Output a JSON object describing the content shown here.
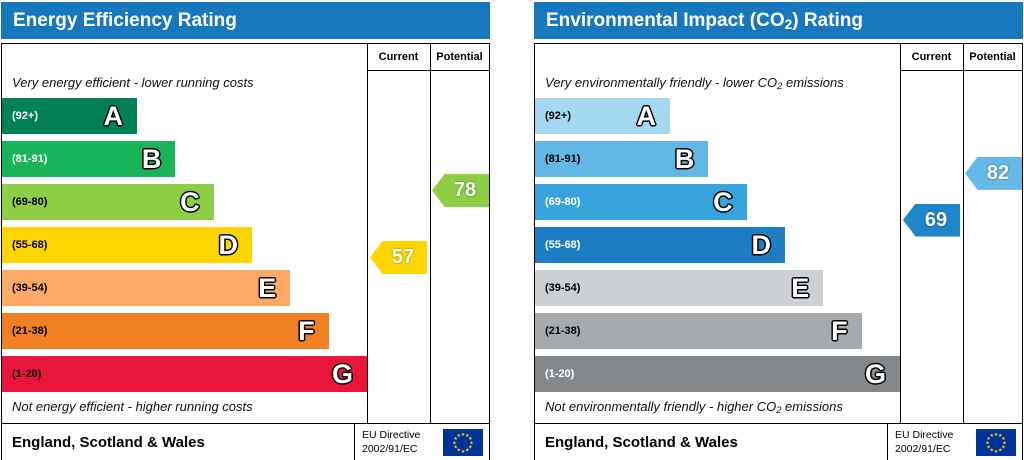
{
  "colors": {
    "header_bg": "#1878be",
    "border": "#000000",
    "eu_flag_blue": "#003399",
    "eu_flag_star": "#ffcc00"
  },
  "panels": [
    {
      "title_pre": "Energy Efficiency Rating",
      "title_sub": "",
      "title_post": "",
      "col_current": "Current",
      "col_potential": "Potential",
      "top_caption_pre": "Very energy efficient - lower running costs",
      "top_caption_sub": "",
      "top_caption_post": "",
      "bottom_caption_pre": "Not energy efficient - higher running costs",
      "bottom_caption_sub": "",
      "bottom_caption_post": "",
      "bands": [
        {
          "letter": "A",
          "range": "(92+)",
          "min": 92,
          "max": 100,
          "color": "#008054",
          "text_color": "#ffffff"
        },
        {
          "letter": "B",
          "range": "(81-91)",
          "min": 81,
          "max": 91,
          "color": "#19b459",
          "text_color": "#ffffff"
        },
        {
          "letter": "C",
          "range": "(69-80)",
          "min": 69,
          "max": 80,
          "color": "#8dce46",
          "text_color": "#000000"
        },
        {
          "letter": "D",
          "range": "(55-68)",
          "min": 55,
          "max": 68,
          "color": "#ffd500",
          "text_color": "#000000"
        },
        {
          "letter": "E",
          "range": "(39-54)",
          "min": 39,
          "max": 54,
          "color": "#fcaa65",
          "text_color": "#000000"
        },
        {
          "letter": "F",
          "range": "(21-38)",
          "min": 21,
          "max": 38,
          "color": "#ef8023",
          "text_color": "#000000"
        },
        {
          "letter": "G",
          "range": "(1-20)",
          "min": 1,
          "max": 20,
          "color": "#e9153b",
          "text_color": "#000000"
        }
      ],
      "arrows": [
        {
          "column": "current",
          "value": 57,
          "color": "#ffd500"
        },
        {
          "column": "potential",
          "value": 78,
          "color": "#8dce46"
        }
      ],
      "footer_left": "England, Scotland & Wales",
      "footer_directive_line1": "EU Directive",
      "footer_directive_line2": "2002/91/EC"
    },
    {
      "title_pre": "Environmental Impact (CO",
      "title_sub": "2",
      "title_post": ") Rating",
      "col_current": "Current",
      "col_potential": "Potential",
      "top_caption_pre": "Very environmentally friendly - lower CO",
      "top_caption_sub": "2",
      "top_caption_post": " emissions",
      "bottom_caption_pre": "Not environmentally friendly - higher CO",
      "bottom_caption_sub": "2",
      "bottom_caption_post": " emissions",
      "bands": [
        {
          "letter": "A",
          "range": "(92+)",
          "min": 92,
          "max": 100,
          "color": "#a4d7f1",
          "text_color": "#000000"
        },
        {
          "letter": "B",
          "range": "(81-91)",
          "min": 81,
          "max": 91,
          "color": "#62b7e5",
          "text_color": "#000000"
        },
        {
          "letter": "C",
          "range": "(69-80)",
          "min": 69,
          "max": 80,
          "color": "#38a3dc",
          "text_color": "#ffffff"
        },
        {
          "letter": "D",
          "range": "(55-68)",
          "min": 55,
          "max": 68,
          "color": "#1d7dc2",
          "text_color": "#ffffff"
        },
        {
          "letter": "E",
          "range": "(39-54)",
          "min": 39,
          "max": 54,
          "color": "#ccd0d3",
          "text_color": "#000000"
        },
        {
          "letter": "F",
          "range": "(21-38)",
          "min": 21,
          "max": 38,
          "color": "#a7aaad",
          "text_color": "#000000"
        },
        {
          "letter": "G",
          "range": "(1-20)",
          "min": 1,
          "max": 20,
          "color": "#85888b",
          "text_color": "#ffffff"
        }
      ],
      "arrows": [
        {
          "column": "current",
          "value": 69,
          "color": "#1f87c9"
        },
        {
          "column": "potential",
          "value": 82,
          "color": "#66b8e7"
        }
      ],
      "footer_left": "England, Scotland & Wales",
      "footer_directive_line1": "EU Directive",
      "footer_directive_line2": "2002/91/EC"
    }
  ],
  "chart_data": [
    {
      "type": "bar",
      "title": "Energy Efficiency Rating",
      "categories": [
        "A (92+)",
        "B (81-91)",
        "C (69-80)",
        "D (55-68)",
        "E (39-54)",
        "F (21-38)",
        "G (1-20)"
      ],
      "series": [
        {
          "name": "Current",
          "values": [
            57
          ],
          "band": "D"
        },
        {
          "name": "Potential",
          "values": [
            78
          ],
          "band": "C"
        }
      ],
      "xlabel": "",
      "ylabel": "",
      "legend_position": "columns-right",
      "annotations": [
        "Very energy efficient - lower running costs",
        "Not energy efficient - higher running costs",
        "England, Scotland & Wales",
        "EU Directive 2002/91/EC"
      ]
    },
    {
      "type": "bar",
      "title": "Environmental Impact (CO2) Rating",
      "categories": [
        "A (92+)",
        "B (81-91)",
        "C (69-80)",
        "D (55-68)",
        "E (39-54)",
        "F (21-38)",
        "G (1-20)"
      ],
      "series": [
        {
          "name": "Current",
          "values": [
            69
          ],
          "band": "C"
        },
        {
          "name": "Potential",
          "values": [
            82
          ],
          "band": "B"
        }
      ],
      "xlabel": "",
      "ylabel": "",
      "legend_position": "columns-right",
      "annotations": [
        "Very environmentally friendly - lower CO2 emissions",
        "Not environmentally friendly - higher CO2 emissions",
        "England, Scotland & Wales",
        "EU Directive 2002/91/EC"
      ]
    }
  ]
}
